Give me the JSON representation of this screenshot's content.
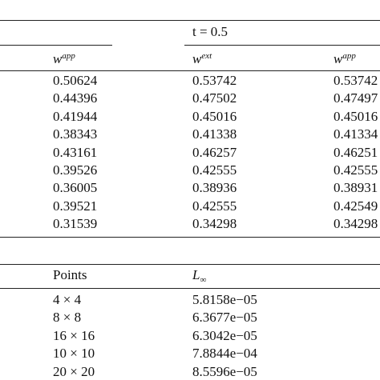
{
  "top_table": {
    "header": {
      "time_label": "t = 0.5",
      "columns": [
        {
          "symbol": "w",
          "superscript": "app"
        },
        {
          "symbol": "w",
          "superscript": "ext"
        },
        {
          "symbol": "w",
          "superscript": "app"
        }
      ]
    },
    "rows": [
      [
        "0.50624",
        "0.53742",
        "0.53742"
      ],
      [
        "0.44396",
        "0.47502",
        "0.47497"
      ],
      [
        "0.41944",
        "0.45016",
        "0.45016"
      ],
      [
        "0.38343",
        "0.41338",
        "0.41334"
      ],
      [
        "0.43161",
        "0.46257",
        "0.46251"
      ],
      [
        "0.39526",
        "0.42555",
        "0.42555"
      ],
      [
        "0.36005",
        "0.38936",
        "0.38931"
      ],
      [
        "0.39521",
        "0.42555",
        "0.42549"
      ],
      [
        "0.31539",
        "0.34298",
        "0.34298"
      ]
    ]
  },
  "bottom_table": {
    "header": {
      "points": "Points",
      "norm": {
        "symbol": "L",
        "subscript": "∞"
      }
    },
    "rows": [
      [
        "4 × 4",
        "5.8158e−05"
      ],
      [
        "8 × 8",
        "6.3677e−05"
      ],
      [
        "16 × 16",
        "6.3042e−05"
      ],
      [
        "10 × 10",
        "7.8844e−04"
      ],
      [
        "20 × 20",
        "8.5596e−05"
      ]
    ]
  }
}
